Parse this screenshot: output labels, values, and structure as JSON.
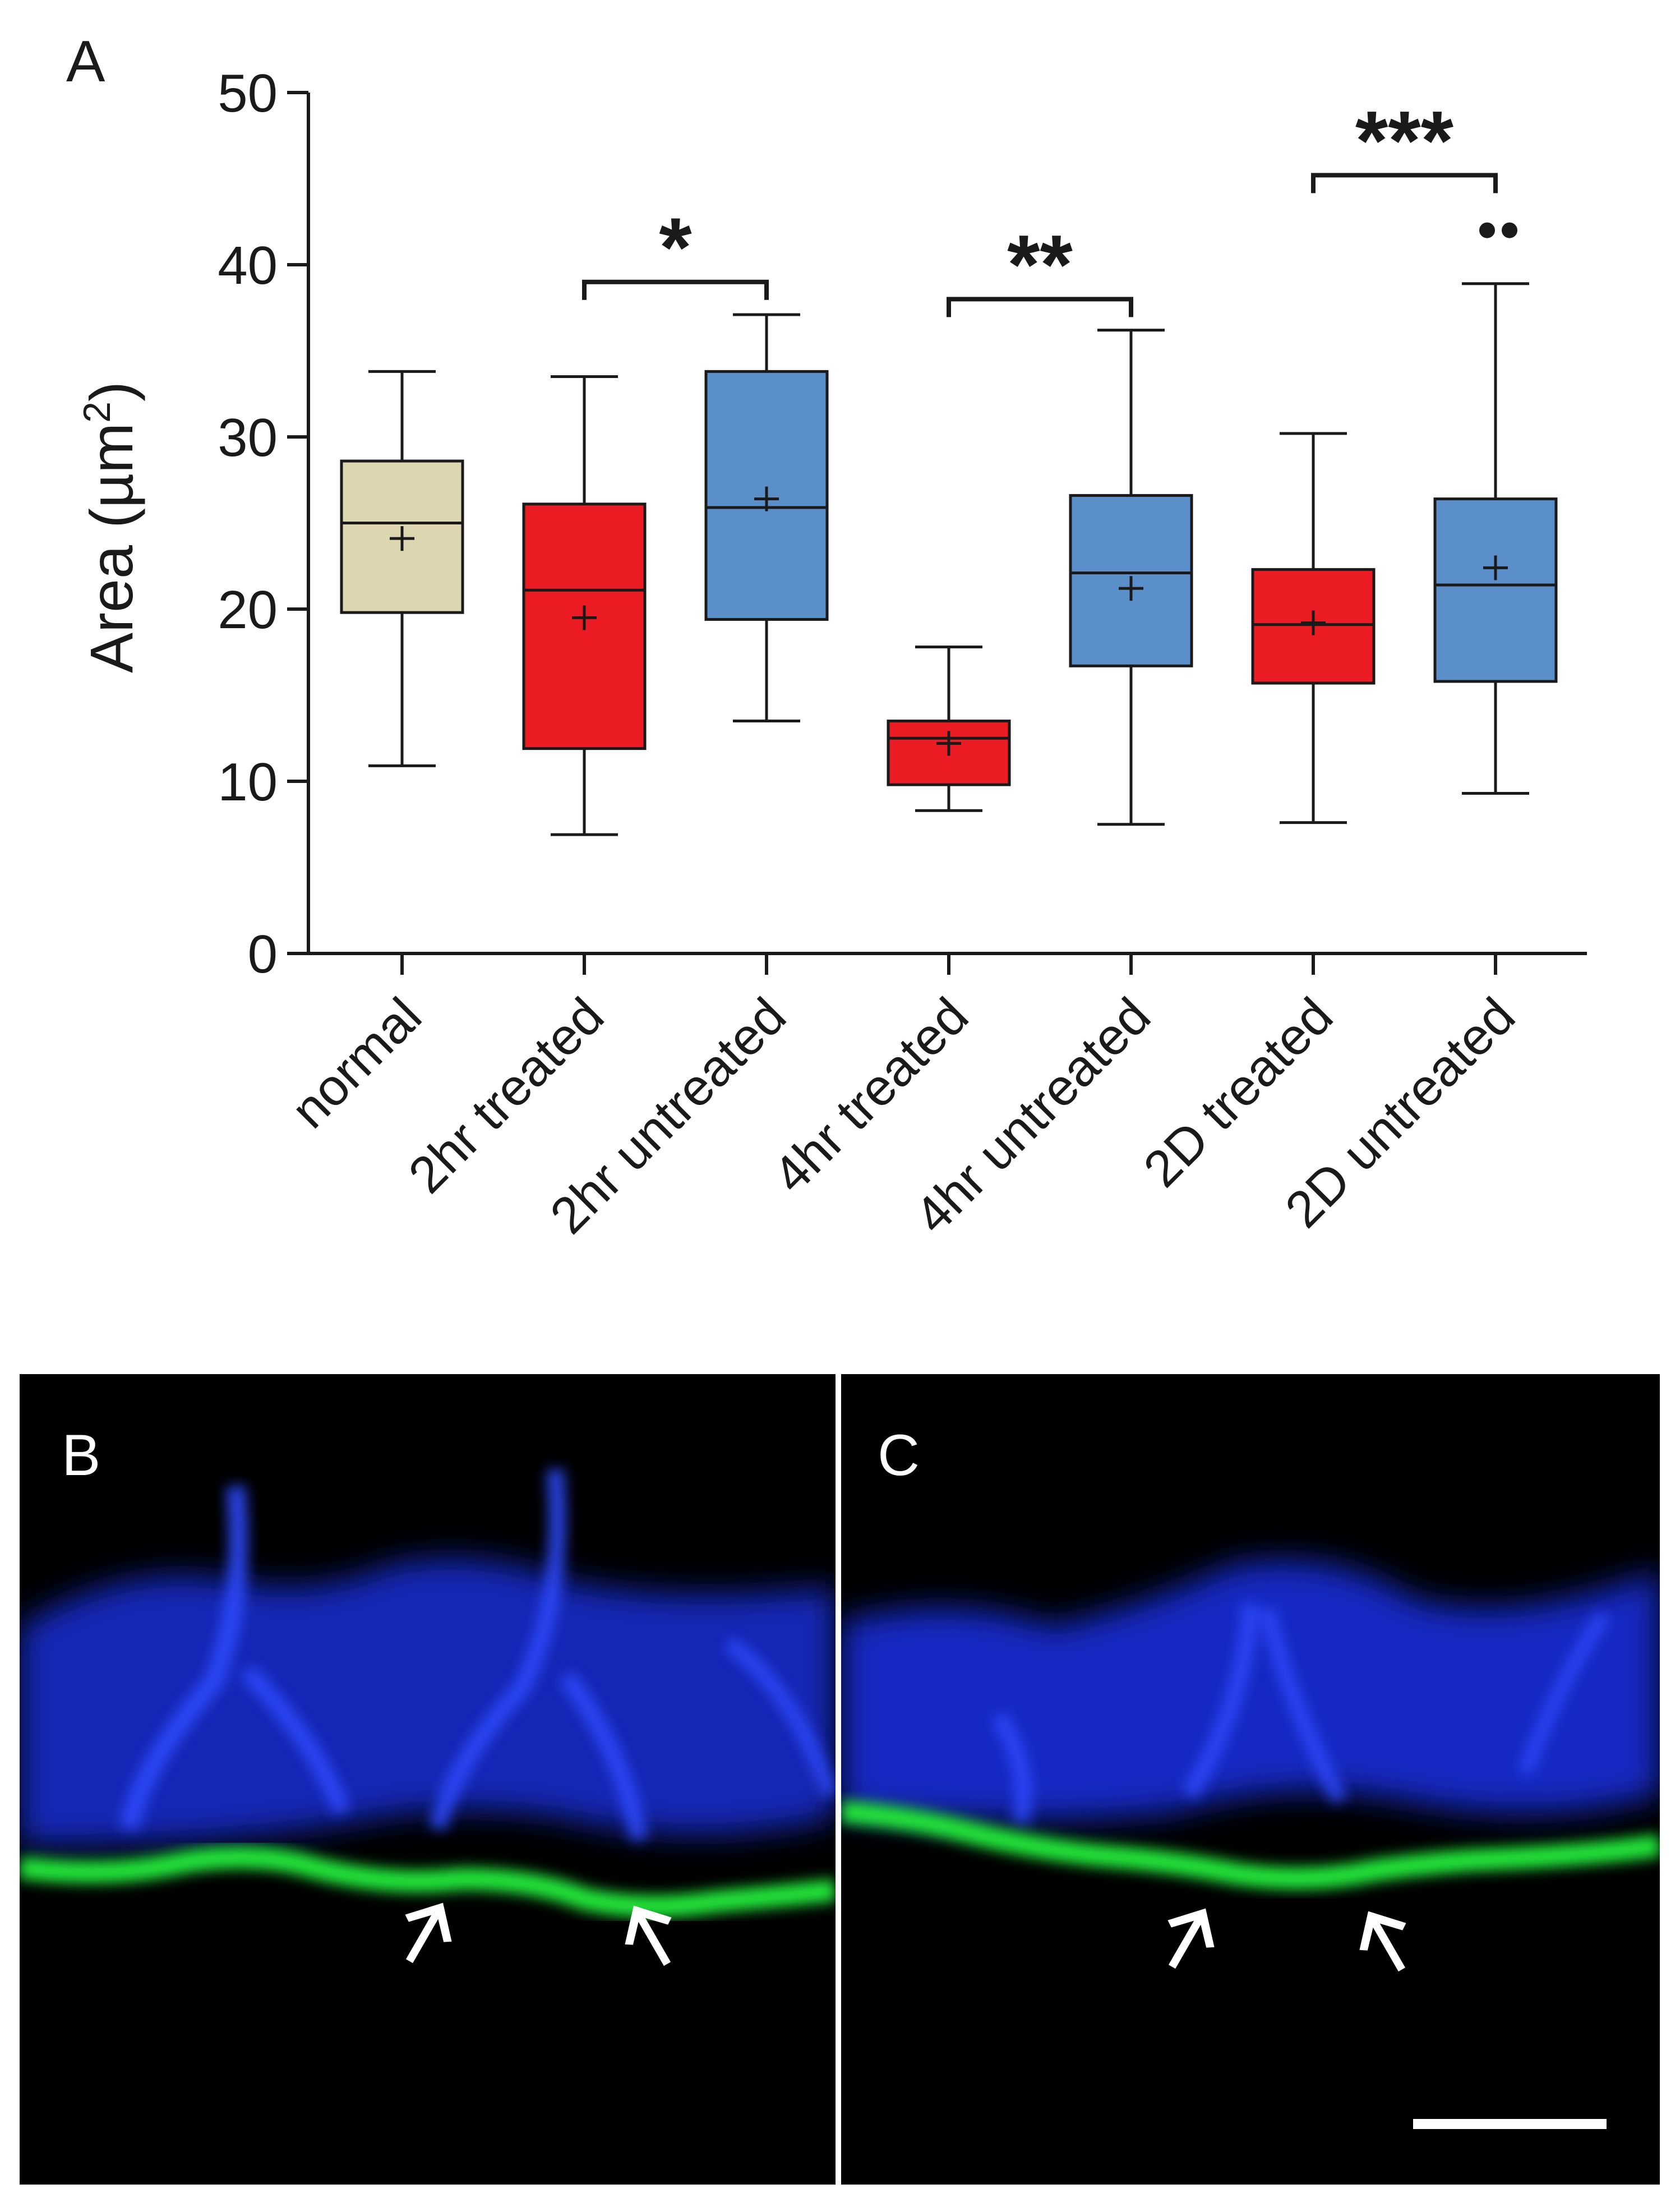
{
  "panels": {
    "a_label": "A",
    "b_label": "B",
    "c_label": "C"
  },
  "colors": {
    "normal": "#dcd6b1",
    "treated": "#ec1c24",
    "untreated": "#5b8fc9",
    "line": "#1a1a1a"
  },
  "chart_data": {
    "type": "box",
    "title": "",
    "xlabel": "",
    "ylabel": "Area (µm²)",
    "ylabel_main": "Area (",
    "ylabel_unit": "µm",
    "ylabel_sup": "2",
    "ylabel_close": ")",
    "ylim": [
      0,
      50
    ],
    "yticks": [
      0,
      10,
      20,
      30,
      40,
      50
    ],
    "ytick_labels": [
      "0",
      "10",
      "20",
      "30",
      "40",
      "50"
    ],
    "categories": [
      "normal",
      "2hr treated",
      "2hr untreated",
      "4hr treated",
      "4hr untreated",
      "2D treated",
      "2D untreated"
    ],
    "groups": [
      "normal",
      "treated",
      "untreated",
      "treated",
      "untreated",
      "treated",
      "untreated"
    ],
    "boxes": [
      {
        "whisker_low": 10.9,
        "q1": 19.8,
        "median": 25.0,
        "q3": 28.6,
        "whisker_high": 33.8,
        "mean": 24.1,
        "outliers": []
      },
      {
        "whisker_low": 6.9,
        "q1": 11.9,
        "median": 21.1,
        "q3": 26.1,
        "whisker_high": 33.5,
        "mean": 19.5,
        "outliers": []
      },
      {
        "whisker_low": 13.5,
        "q1": 19.4,
        "median": 25.9,
        "q3": 33.8,
        "whisker_high": 37.1,
        "mean": 26.4,
        "outliers": []
      },
      {
        "whisker_low": 8.3,
        "q1": 9.8,
        "median": 12.5,
        "q3": 13.5,
        "whisker_high": 17.8,
        "mean": 12.2,
        "outliers": []
      },
      {
        "whisker_low": 7.5,
        "q1": 16.7,
        "median": 22.1,
        "q3": 26.6,
        "whisker_high": 36.2,
        "mean": 21.2,
        "outliers": []
      },
      {
        "whisker_low": 7.6,
        "q1": 15.7,
        "median": 19.1,
        "q3": 22.3,
        "whisker_high": 30.2,
        "mean": 19.2,
        "outliers": []
      },
      {
        "whisker_low": 9.3,
        "q1": 15.8,
        "median": 21.4,
        "q3": 26.4,
        "whisker_high": 38.9,
        "mean": 22.4,
        "outliers": [
          42.0,
          42.0
        ]
      }
    ],
    "significance": [
      {
        "from": 1,
        "to": 2,
        "y": 39.0,
        "label": "*"
      },
      {
        "from": 3,
        "to": 4,
        "y": 38.0,
        "label": "**"
      },
      {
        "from": 5,
        "to": 6,
        "y": 45.2,
        "label": "***"
      }
    ]
  },
  "micrographs": [
    {
      "arrow_count": 2
    },
    {
      "arrow_count": 2,
      "scale_bar": true
    }
  ]
}
